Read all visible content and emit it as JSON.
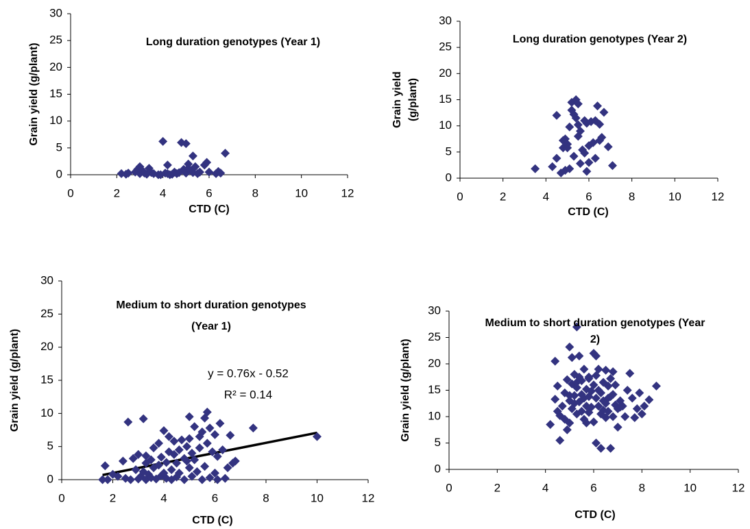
{
  "chart_data": [
    {
      "type": "scatter",
      "title": [
        "Long duration genotypes (Year 1)"
      ],
      "xlabel": "CTD (C)",
      "ylabel": [
        "Grain yield (g/plant)"
      ],
      "color": "#333380",
      "xlim": [
        0,
        12
      ],
      "ylim": [
        0,
        30
      ],
      "xticks": [
        0,
        2,
        4,
        6,
        8,
        10,
        12
      ],
      "yticks": [
        0,
        5,
        10,
        15,
        20,
        25,
        30
      ],
      "x": [
        2.2,
        2.4,
        2.5,
        2.8,
        2.9,
        3.0,
        3.0,
        3.1,
        3.2,
        3.3,
        3.4,
        3.5,
        3.6,
        3.8,
        4.0,
        4.1,
        4.2,
        4.2,
        4.4,
        4.5,
        4.6,
        4.7,
        4.8,
        4.9,
        5.0,
        5.0,
        5.1,
        5.1,
        5.2,
        5.3,
        5.3,
        5.4,
        5.5,
        5.6,
        5.8,
        5.9,
        6.0,
        6.3,
        6.4,
        6.5,
        6.7,
        3.9,
        4.3
      ],
      "values": [
        0.2,
        0.1,
        0.3,
        0.5,
        1.0,
        1.5,
        0.2,
        0.8,
        0.3,
        0.1,
        1.2,
        0.4,
        0.2,
        0.0,
        6.2,
        0.3,
        1.8,
        0.2,
        0.1,
        0.5,
        0.2,
        0.4,
        6.0,
        1.0,
        5.8,
        0.3,
        2.0,
        1.2,
        0.8,
        0.4,
        3.5,
        1.5,
        0.2,
        0.5,
        1.8,
        2.3,
        0.5,
        0.2,
        0.6,
        0.3,
        4.0,
        0.0,
        0.0
      ]
    },
    {
      "type": "scatter",
      "title": [
        "Long duration genotypes (Year 2)"
      ],
      "xlabel": "CTD (C)",
      "ylabel": [
        "Grain yield",
        "(g/plant)"
      ],
      "color": "#333380",
      "xlim": [
        0,
        12
      ],
      "ylim": [
        0,
        30
      ],
      "xticks": [
        0,
        2,
        4,
        6,
        8,
        10,
        12
      ],
      "yticks": [
        0,
        5,
        10,
        15,
        20,
        25,
        30
      ],
      "x": [
        3.5,
        4.3,
        4.5,
        4.5,
        4.7,
        4.8,
        4.8,
        4.9,
        4.9,
        5.0,
        5.0,
        5.1,
        5.1,
        5.2,
        5.2,
        5.3,
        5.3,
        5.4,
        5.4,
        5.5,
        5.5,
        5.5,
        5.6,
        5.6,
        5.7,
        5.8,
        5.9,
        5.9,
        6.0,
        6.0,
        6.1,
        6.2,
        6.3,
        6.3,
        6.4,
        6.5,
        6.5,
        6.6,
        6.7,
        6.9,
        7.1,
        5.8
      ],
      "values": [
        1.8,
        2.2,
        3.8,
        12.0,
        1.0,
        5.8,
        7.2,
        7.5,
        1.5,
        6.5,
        5.8,
        9.8,
        1.8,
        14.5,
        13.0,
        12.2,
        4.2,
        15.0,
        11.5,
        14.2,
        10.2,
        8.0,
        9.0,
        2.8,
        5.4,
        4.8,
        1.3,
        10.5,
        6.2,
        3.0,
        10.8,
        6.8,
        11.0,
        3.8,
        13.8,
        7.2,
        10.3,
        7.8,
        12.6,
        6.0,
        2.4,
        11.0
      ]
    },
    {
      "type": "scatter",
      "title": [
        "Medium to short duration genotypes",
        "(Year 1)"
      ],
      "xlabel": "CTD (C)",
      "ylabel": [
        "Grain yield (g/plant)"
      ],
      "color": "#333380",
      "annotations": [
        "y = 0.76x - 0.52",
        "R² = 0.14"
      ],
      "trendline": {
        "x": [
          1.6,
          10
        ],
        "y": [
          0.7,
          7.08
        ],
        "color": "#000000"
      },
      "xlim": [
        0,
        12
      ],
      "ylim": [
        0,
        30
      ],
      "xticks": [
        0,
        2,
        4,
        6,
        8,
        10,
        12
      ],
      "yticks": [
        0,
        5,
        10,
        15,
        20,
        25,
        30
      ],
      "x": [
        1.6,
        1.7,
        1.8,
        2.0,
        2.2,
        2.4,
        2.5,
        2.6,
        2.7,
        2.8,
        2.9,
        3.0,
        3.0,
        3.1,
        3.2,
        3.2,
        3.3,
        3.3,
        3.4,
        3.5,
        3.5,
        3.6,
        3.6,
        3.7,
        3.8,
        3.8,
        3.9,
        3.9,
        4.0,
        4.0,
        4.1,
        4.1,
        4.2,
        4.2,
        4.3,
        4.3,
        4.4,
        4.4,
        4.5,
        4.5,
        4.6,
        4.6,
        4.7,
        4.8,
        4.8,
        4.9,
        4.9,
        5.0,
        5.0,
        5.0,
        5.1,
        5.1,
        5.2,
        5.2,
        5.3,
        5.4,
        5.4,
        5.5,
        5.5,
        5.6,
        5.6,
        5.7,
        5.7,
        5.8,
        5.8,
        5.9,
        6.0,
        6.0,
        6.1,
        6.1,
        6.2,
        6.3,
        6.4,
        6.5,
        6.6,
        6.7,
        6.8,
        7.5,
        10.0,
        3.3
      ],
      "values": [
        0.0,
        2.1,
        0.0,
        0.8,
        0.5,
        2.8,
        0.2,
        8.7,
        0.0,
        3.2,
        1.5,
        0.1,
        3.8,
        0.5,
        1.2,
        9.2,
        0.0,
        2.5,
        0.8,
        3.0,
        0.3,
        1.8,
        4.8,
        0.1,
        2.2,
        5.5,
        0.6,
        3.4,
        7.4,
        1.0,
        2.6,
        0.2,
        4.2,
        6.5,
        1.5,
        0.0,
        3.8,
        5.8,
        2.5,
        0.4,
        4.5,
        1.0,
        6.0,
        3.2,
        0.0,
        2.8,
        5.0,
        9.5,
        1.8,
        6.2,
        4.0,
        0.5,
        8.0,
        3.0,
        1.2,
        4.8,
        6.5,
        0.0,
        7.2,
        9.3,
        2.0,
        10.2,
        5.5,
        0.3,
        7.8,
        4.2,
        1.0,
        6.8,
        3.5,
        0.0,
        8.5,
        4.5,
        0.2,
        1.8,
        6.7,
        2.5,
        2.8,
        7.8,
        6.5,
        3.6
      ]
    },
    {
      "type": "scatter",
      "title": [
        "Medium to short duration genotypes (Year",
        "2)"
      ],
      "xlabel": "CTD (C)",
      "ylabel": [
        "Grain yield (g/plant)"
      ],
      "color": "#333380",
      "xlim": [
        0,
        12
      ],
      "ylim": [
        0,
        30
      ],
      "xticks": [
        0,
        2,
        4,
        6,
        8,
        10,
        12
      ],
      "yticks": [
        0,
        5,
        10,
        15,
        20,
        25,
        30
      ],
      "x": [
        4.2,
        4.4,
        4.4,
        4.5,
        4.5,
        4.6,
        4.6,
        4.7,
        4.8,
        4.8,
        4.9,
        4.9,
        5.0,
        5.0,
        5.0,
        5.1,
        5.1,
        5.1,
        5.2,
        5.2,
        5.2,
        5.3,
        5.3,
        5.3,
        5.4,
        5.4,
        5.4,
        5.5,
        5.5,
        5.5,
        5.6,
        5.6,
        5.6,
        5.7,
        5.7,
        5.7,
        5.8,
        5.8,
        5.8,
        5.9,
        5.9,
        6.0,
        6.0,
        6.0,
        6.1,
        6.1,
        6.1,
        6.2,
        6.2,
        6.2,
        6.3,
        6.3,
        6.3,
        6.4,
        6.4,
        6.4,
        6.5,
        6.5,
        6.5,
        6.6,
        6.6,
        6.7,
        6.7,
        6.7,
        6.8,
        6.8,
        6.8,
        6.9,
        6.9,
        7.0,
        7.0,
        7.1,
        7.2,
        7.3,
        7.4,
        7.5,
        7.6,
        7.7,
        7.8,
        7.9,
        8.0,
        8.1,
        8.3,
        8.6,
        5.3,
        6.1,
        5.0,
        6.6,
        7.1,
        5.8
      ],
      "values": [
        8.5,
        13.3,
        20.5,
        11.0,
        15.8,
        10.2,
        5.5,
        12.0,
        9.5,
        14.5,
        7.5,
        17.0,
        23.2,
        13.0,
        8.8,
        21.2,
        16.2,
        11.5,
        18.0,
        14.0,
        12.5,
        27.0,
        15.5,
        10.5,
        21.5,
        17.5,
        12.8,
        14.2,
        11.0,
        16.8,
        9.5,
        19.0,
        13.5,
        15.2,
        12.0,
        8.8,
        17.2,
        13.8,
        10.8,
        14.8,
        11.8,
        22.0,
        16.0,
        9.0,
        21.5,
        13.5,
        17.8,
        19.0,
        12.0,
        15.0,
        4.0,
        14.5,
        10.5,
        16.5,
        11.2,
        13.0,
        18.8,
        9.8,
        12.5,
        15.8,
        11.0,
        17.2,
        13.8,
        4.0,
        18.5,
        10.0,
        14.2,
        12.2,
        16.0,
        8.0,
        11.5,
        13.0,
        12.0,
        10.0,
        15.0,
        18.2,
        13.5,
        9.8,
        11.5,
        14.5,
        10.5,
        12.0,
        13.2,
        15.8,
        16.5,
        5.0,
        14.0,
        13.5,
        11.8,
        17.5
      ]
    }
  ]
}
